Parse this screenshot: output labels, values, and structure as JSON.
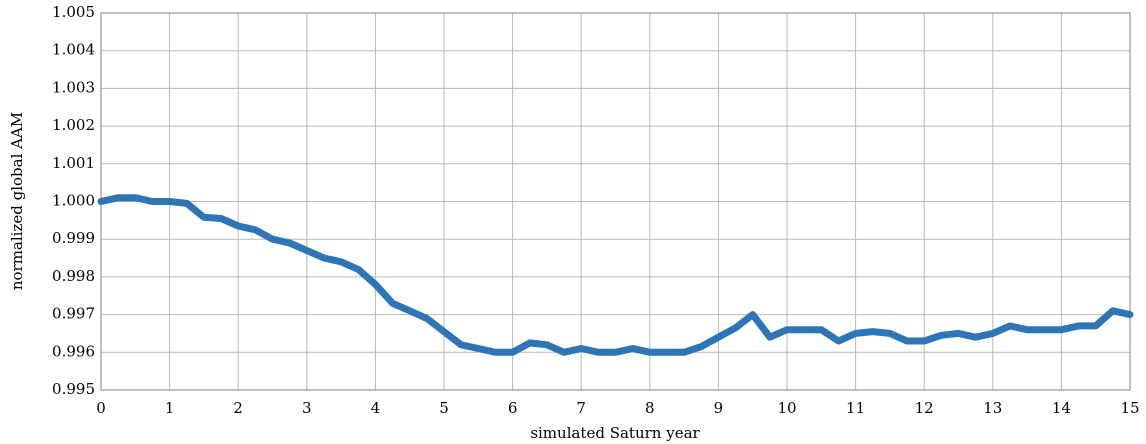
{
  "chart_data": {
    "type": "line",
    "xlabel": "simulated Saturn year",
    "ylabel": "normalized global AAM",
    "x": [
      0,
      0.25,
      0.5,
      0.75,
      1,
      1.25,
      1.5,
      1.75,
      2,
      2.25,
      2.5,
      2.75,
      3,
      3.25,
      3.5,
      3.75,
      4,
      4.25,
      4.5,
      4.75,
      5,
      5.25,
      5.5,
      5.75,
      6,
      6.25,
      6.5,
      6.75,
      7,
      7.25,
      7.5,
      7.75,
      8,
      8.25,
      8.5,
      8.75,
      9,
      9.25,
      9.5,
      9.75,
      10,
      10.25,
      10.5,
      10.75,
      11,
      11.25,
      11.5,
      11.75,
      12,
      12.25,
      12.5,
      12.75,
      13,
      13.25,
      13.5,
      13.75,
      14,
      14.25,
      14.5,
      14.75,
      15
    ],
    "y": [
      1.0,
      1.0001,
      1.0001,
      1.0,
      1.0,
      0.99995,
      0.99958,
      0.99955,
      0.99935,
      0.99925,
      0.999,
      0.9989,
      0.9987,
      0.9985,
      0.9984,
      0.9982,
      0.9978,
      0.9973,
      0.9971,
      0.9969,
      0.99655,
      0.9962,
      0.9961,
      0.996,
      0.996,
      0.99625,
      0.9962,
      0.996,
      0.9961,
      0.996,
      0.996,
      0.9961,
      0.996,
      0.996,
      0.996,
      0.99615,
      0.9964,
      0.99665,
      0.997,
      0.9964,
      0.9966,
      0.9966,
      0.9966,
      0.9963,
      0.9965,
      0.99655,
      0.9965,
      0.9963,
      0.9963,
      0.99645,
      0.9965,
      0.9964,
      0.9965,
      0.9967,
      0.9966,
      0.9966,
      0.9966,
      0.9967,
      0.9967,
      0.9971,
      0.997
    ],
    "color": "#2e75b6",
    "xlim": [
      0,
      15
    ],
    "xticks": [
      0,
      1,
      2,
      3,
      4,
      5,
      6,
      7,
      8,
      9,
      10,
      11,
      12,
      13,
      14,
      15
    ],
    "ylim": [
      0.995,
      1.005
    ],
    "yticks": [
      0.995,
      0.996,
      0.997,
      0.998,
      0.999,
      {
        "value": 1,
        "label": "1.000"
      },
      1.001,
      1.002,
      1.003,
      1.004,
      1.005
    ],
    "grid": true
  }
}
